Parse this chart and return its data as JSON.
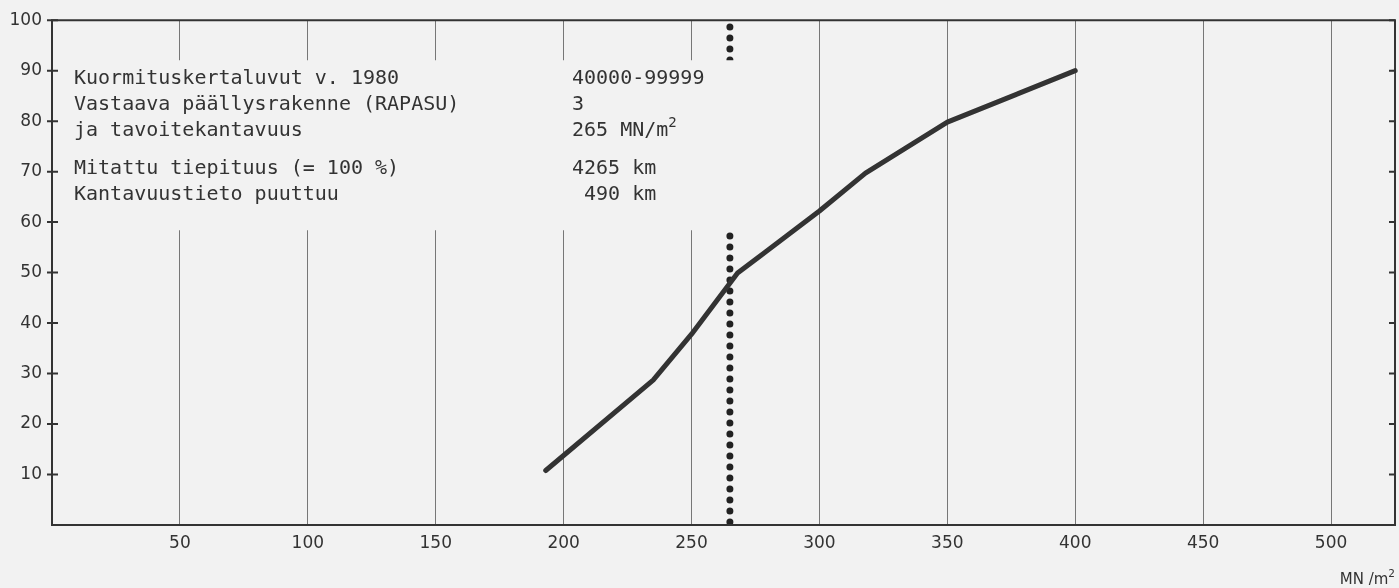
{
  "chart_data": {
    "type": "line",
    "xlabel": "MN /m$^{2}$",
    "x": [
      193,
      235,
      250,
      268,
      300,
      318,
      350,
      400
    ],
    "series": [
      {
        "color": "#333333",
        "values": [
          10.8,
          28.7,
          37.8,
          49.9,
          62.2,
          69.7,
          79.8,
          90.0
        ]
      }
    ],
    "xlim": [
      0,
      525
    ],
    "xticks": [
      50,
      100,
      150,
      200,
      250,
      300,
      350,
      400,
      450,
      500
    ],
    "ylim": [
      0,
      100
    ],
    "yticks": [
      10,
      20,
      30,
      40,
      50,
      60,
      70,
      80,
      90,
      100
    ],
    "grid": "x",
    "legend": false,
    "marker": "none",
    "line_style": "solid",
    "ref_lines": [
      {
        "axis": "x",
        "value": 265,
        "line_style": "dotted",
        "color": "#222222"
      }
    ],
    "annotations": [
      "Kuormituskertaluvut v. 1980",
      "40000-99999",
      "Vastaava päällysrakenne (RAPASU)",
      "3",
      "ja tavoitekantavuus",
      "265 MN/m$^{2}$",
      "Mitattu tiepituus (= 100 %)",
      "4265 km",
      "Kantavuustieto puuttuu",
      " 490 km"
    ]
  }
}
